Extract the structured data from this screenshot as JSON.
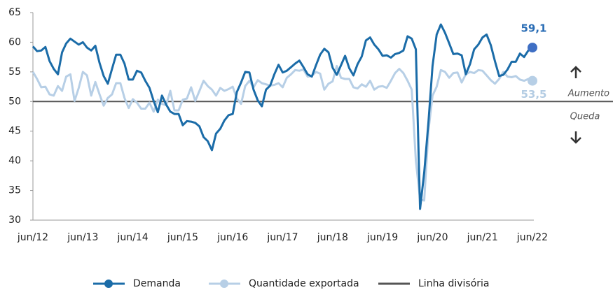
{
  "chart_data": {
    "type": "line",
    "categories": [
      "jun/12",
      null,
      null,
      null,
      null,
      null,
      null,
      null,
      null,
      null,
      null,
      null,
      "jun/13",
      null,
      null,
      null,
      null,
      null,
      null,
      null,
      null,
      null,
      null,
      null,
      "jun/14",
      null,
      null,
      null,
      null,
      null,
      null,
      null,
      null,
      null,
      null,
      null,
      "jun/15",
      null,
      null,
      null,
      null,
      null,
      null,
      null,
      null,
      null,
      null,
      null,
      "jun/16",
      null,
      null,
      null,
      null,
      null,
      null,
      null,
      null,
      null,
      null,
      null,
      "jun/17",
      null,
      null,
      null,
      null,
      null,
      null,
      null,
      null,
      null,
      null,
      null,
      "jun/18",
      null,
      null,
      null,
      null,
      null,
      null,
      null,
      null,
      null,
      null,
      null,
      "jun/19",
      null,
      null,
      null,
      null,
      null,
      null,
      null,
      null,
      null,
      null,
      null,
      "jun/20",
      null,
      null,
      null,
      null,
      null,
      null,
      null,
      null,
      null,
      null,
      null,
      "jun/21",
      null,
      null,
      null,
      null,
      null,
      null,
      null,
      null,
      null,
      null,
      null,
      "jun/22"
    ],
    "series": [
      {
        "name": "Demanda",
        "color": "#1b6ca8",
        "marker_color": "#3f6fc4",
        "end_label": "59,1",
        "label_color": "#2a6db5",
        "values": [
          59.3,
          58.5,
          58.6,
          59.2,
          56.8,
          55.5,
          54.6,
          58.3,
          59.8,
          60.6,
          60.1,
          59.6,
          60.0,
          59.1,
          58.6,
          59.4,
          56.5,
          54.3,
          53.0,
          55.5,
          57.9,
          57.9,
          56.4,
          53.7,
          53.7,
          55.2,
          54.9,
          53.5,
          52.3,
          50.1,
          48.2,
          51.0,
          49.5,
          48.3,
          47.9,
          47.9,
          46.0,
          46.7,
          46.6,
          46.4,
          45.8,
          44.0,
          43.3,
          41.8,
          44.6,
          45.4,
          46.8,
          47.7,
          47.9,
          51.6,
          53.2,
          55.0,
          54.9,
          52.0,
          50.2,
          49.2,
          52.0,
          52.7,
          54.6,
          56.2,
          54.9,
          55.2,
          55.8,
          56.4,
          56.9,
          55.8,
          54.6,
          54.2,
          56.1,
          57.9,
          58.9,
          58.3,
          55.7,
          54.5,
          56.1,
          57.7,
          55.6,
          54.4,
          56.3,
          57.6,
          60.3,
          60.8,
          59.6,
          58.8,
          57.7,
          57.8,
          57.4,
          58.0,
          58.2,
          58.6,
          61.0,
          60.6,
          58.8,
          31.9,
          38.0,
          46.4,
          56.0,
          61.3,
          63.0,
          61.6,
          59.8,
          58.0,
          58.1,
          57.8,
          54.6,
          56.3,
          58.8,
          59.6,
          60.8,
          61.3,
          59.5,
          56.8,
          54.3,
          54.5,
          55.4,
          56.7,
          56.7,
          58.1,
          57.5,
          58.6,
          59.1
        ]
      },
      {
        "name": "Quantidade exportada",
        "color": "#b7cfe6",
        "marker_color": "#b7cfe6",
        "end_label": "53,5",
        "label_color": "#b3cce3",
        "values": [
          55.0,
          53.8,
          52.4,
          52.5,
          51.2,
          51.0,
          52.6,
          51.8,
          54.2,
          54.6,
          50.1,
          52.3,
          55.0,
          54.4,
          51.0,
          53.3,
          51.2,
          49.3,
          50.6,
          51.2,
          53.1,
          53.1,
          50.6,
          48.9,
          50.4,
          49.8,
          48.8,
          48.8,
          49.8,
          48.3,
          50.3,
          49.6,
          49.4,
          51.8,
          48.5,
          48.5,
          50.3,
          50.5,
          52.4,
          50.1,
          51.8,
          53.5,
          52.6,
          52.0,
          51.0,
          52.3,
          51.8,
          52.1,
          52.5,
          50.5,
          49.6,
          52.6,
          53.5,
          52.4,
          53.6,
          53.1,
          52.9,
          52.7,
          52.8,
          53.1,
          52.4,
          54.0,
          54.6,
          55.3,
          55.2,
          55.4,
          54.2,
          54.3,
          55.0,
          54.7,
          52.0,
          53.0,
          53.4,
          56.0,
          54.0,
          53.8,
          53.8,
          52.4,
          52.2,
          52.9,
          52.5,
          53.5,
          52.0,
          52.5,
          52.6,
          52.3,
          53.5,
          54.8,
          55.5,
          54.8,
          53.5,
          52.0,
          40.0,
          33.5,
          33.3,
          45.0,
          51.0,
          52.5,
          55.3,
          55.0,
          54.0,
          54.8,
          54.9,
          53.2,
          54.6,
          55.0,
          54.8,
          55.3,
          55.2,
          54.4,
          53.6,
          53.0,
          53.8,
          55.0,
          54.2,
          54.1,
          54.3,
          53.7,
          53.5,
          53.8,
          53.5
        ]
      }
    ],
    "divider": {
      "name": "Linha divisória",
      "value": 50,
      "color": "#555555"
    },
    "annotations": {
      "up": "Aumento",
      "down": "Queda"
    },
    "ylim": [
      30,
      65
    ],
    "yticks": [
      30,
      35,
      40,
      45,
      50,
      55,
      60,
      65
    ],
    "grid": false
  }
}
